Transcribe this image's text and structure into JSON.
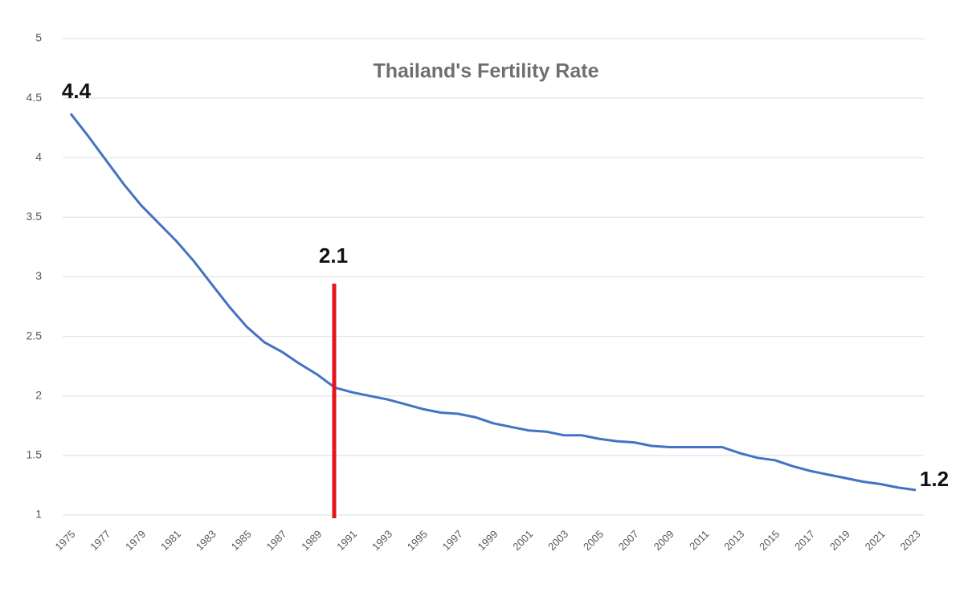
{
  "chart_data": {
    "type": "line",
    "title": "Thailand's Fertility Rate",
    "categories": [
      "1975",
      null,
      "1977",
      null,
      "1979",
      null,
      "1981",
      null,
      "1983",
      null,
      "1985",
      null,
      "1987",
      null,
      "1989",
      null,
      "1991",
      null,
      "1993",
      null,
      "1995",
      null,
      "1997",
      null,
      "1999",
      null,
      "2001",
      null,
      "2003",
      null,
      "2005",
      null,
      "2007",
      null,
      "2009",
      null,
      "2011",
      null,
      "2013",
      null,
      "2015",
      null,
      "2017",
      null,
      "2019",
      null,
      "2021",
      null,
      "2023"
    ],
    "series": [
      {
        "color": "#4472c4",
        "values": [
          4.37,
          4.18,
          3.98,
          3.78,
          3.6,
          3.45,
          3.3,
          3.13,
          2.94,
          2.75,
          2.58,
          2.45,
          2.37,
          2.27,
          2.18,
          2.07,
          2.03,
          2.0,
          1.97,
          1.93,
          1.89,
          1.86,
          1.85,
          1.82,
          1.77,
          1.74,
          1.71,
          1.7,
          1.67,
          1.67,
          1.64,
          1.62,
          1.61,
          1.58,
          1.57,
          1.57,
          1.57,
          1.57,
          1.52,
          1.48,
          1.46,
          1.41,
          1.37,
          1.34,
          1.31,
          1.28,
          1.26,
          1.23,
          1.21
        ]
      }
    ],
    "annotations": [
      "4.4",
      "2.1",
      "1.2"
    ],
    "ylim": [
      1,
      5
    ],
    "yticks": [
      1,
      1.5,
      2,
      2.5,
      3,
      3.5,
      4,
      4.5,
      5
    ],
    "grid": true,
    "marker_color": "#e8141c"
  }
}
